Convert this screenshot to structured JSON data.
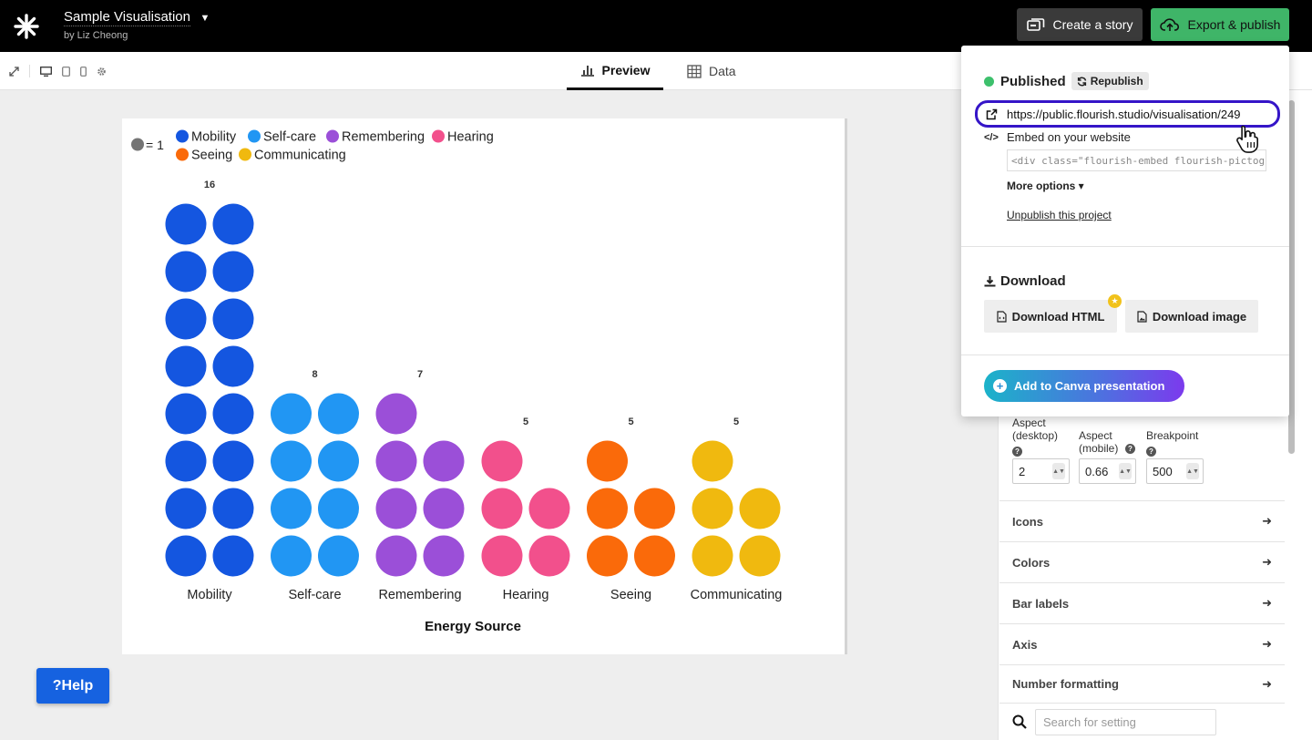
{
  "header": {
    "title": "Sample Visualisation",
    "byline": "by Liz Cheong",
    "create_story_label": "Create a story",
    "export_label": "Export & publish"
  },
  "tabs": {
    "preview": "Preview",
    "data": "Data"
  },
  "publish_popup": {
    "status": "Published",
    "republish_label": "Republish",
    "url": "https://public.flourish.studio/visualisation/249",
    "embed_label": "Embed on your website",
    "embed_code": "<div class=\"flourish-embed flourish-pictogram\"",
    "more_options": "More options",
    "unpublish": "Unpublish this project",
    "download_title": "Download",
    "download_html": "Download HTML",
    "download_image": "Download image",
    "canva_label": "Add to Canva presentation"
  },
  "settings": {
    "aspect_desktop_label": "Aspect (desktop)",
    "aspect_desktop_value": "2",
    "aspect_mobile_label": "Aspect (mobile)",
    "aspect_mobile_value": "0.66",
    "breakpoint_label": "Breakpoint",
    "breakpoint_value": "500",
    "sections": [
      "Icons",
      "Colors",
      "Bar labels",
      "Axis",
      "Number formatting"
    ],
    "search_placeholder": "Search for setting"
  },
  "help_label": "Help",
  "colors": {
    "Mobility": "#1456e0",
    "Self-care": "#2196f3",
    "Remembering": "#9b4fd8",
    "Hearing": "#f2508c",
    "Seeing": "#fa6a0a",
    "Communicating": "#f0b90f",
    "unit": "#757575"
  },
  "chart_data": {
    "type": "pictogram-bar",
    "unit_legend": "= 1",
    "legend": [
      "Mobility",
      "Self-care",
      "Remembering",
      "Hearing",
      "Seeing",
      "Communicating"
    ],
    "categories": [
      "Mobility",
      "Self-care",
      "Remembering",
      "Hearing",
      "Seeing",
      "Communicating"
    ],
    "values": [
      16,
      8,
      7,
      5,
      5,
      5
    ],
    "xlabel": "Energy Source",
    "icon": "circle",
    "icons_per_row": 2
  }
}
